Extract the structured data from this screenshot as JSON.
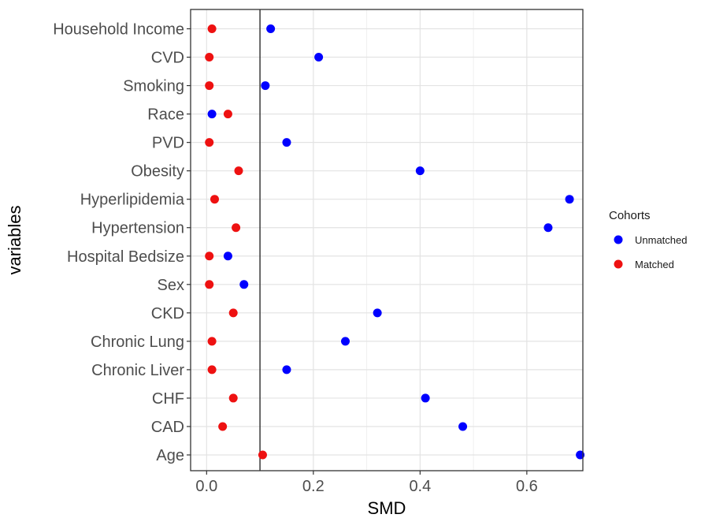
{
  "chart_data": {
    "type": "scatter",
    "title": "",
    "xlabel": "SMD",
    "ylabel": "variables",
    "xlim": [
      -0.03,
      0.705
    ],
    "xticks": [
      "0.0",
      "0.2",
      "0.4",
      "0.6"
    ],
    "xtick_values": [
      0.0,
      0.2,
      0.4,
      0.6
    ],
    "reference_line": 0.1,
    "grid": true,
    "legend_position": "right",
    "legend_title": "Cohorts",
    "categories": [
      "Age",
      "CAD",
      "CHF",
      "Chronic Liver",
      "Chronic Lung",
      "CKD",
      "Sex",
      "Hospital Bedsize",
      "Hypertension",
      "Hyperlipidemia",
      "Obesity",
      "PVD",
      "Race",
      "Smoking",
      "CVD",
      "Household Income"
    ],
    "series": [
      {
        "name": "Unmatched",
        "color": "#0000ff",
        "values": [
          0.7,
          0.48,
          0.41,
          0.15,
          0.26,
          0.32,
          0.07,
          0.04,
          0.64,
          0.68,
          0.4,
          0.15,
          0.01,
          0.11,
          0.21,
          0.12
        ]
      },
      {
        "name": "Matched",
        "color": "#ee1111",
        "values": [
          0.105,
          0.03,
          0.05,
          0.01,
          0.01,
          0.05,
          0.005,
          0.005,
          0.055,
          0.015,
          0.06,
          0.005,
          0.04,
          0.005,
          0.005,
          0.01
        ]
      }
    ]
  }
}
